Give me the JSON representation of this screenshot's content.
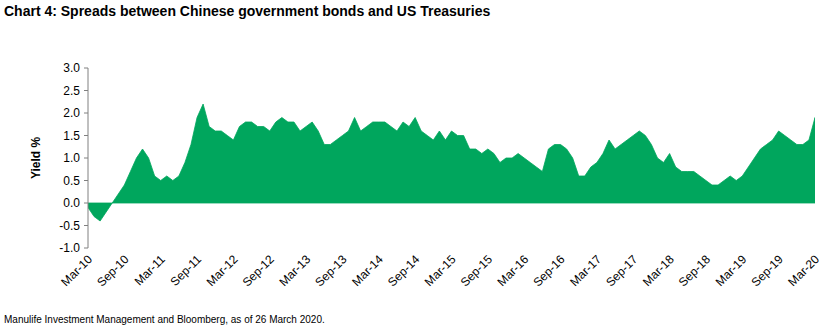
{
  "chart_data": {
    "type": "area",
    "title": "Chart 4: Spreads between Chinese government bonds and US Treasuries",
    "y_label": "Yield %",
    "source": "Manulife Investment Management and Bloomberg, as of 26 March 2020.",
    "color": "#00a65d",
    "grid": false,
    "categories": [
      "Mar-10",
      null,
      null,
      null,
      null,
      null,
      "Sep-10",
      null,
      null,
      null,
      null,
      null,
      "Mar-11",
      null,
      null,
      null,
      null,
      null,
      "Sep-11",
      null,
      null,
      null,
      null,
      null,
      "Mar-12",
      null,
      null,
      null,
      null,
      null,
      "Sep-12",
      null,
      null,
      null,
      null,
      null,
      "Mar-13",
      null,
      null,
      null,
      null,
      null,
      "Sep-13",
      null,
      null,
      null,
      null,
      null,
      "Mar-14",
      null,
      null,
      null,
      null,
      null,
      "Sep-14",
      null,
      null,
      null,
      null,
      null,
      "Mar-15",
      null,
      null,
      null,
      null,
      null,
      "Sep-15",
      null,
      null,
      null,
      null,
      null,
      "Mar-16",
      null,
      null,
      null,
      null,
      null,
      "Sep-16",
      null,
      null,
      null,
      null,
      null,
      "Mar-17",
      null,
      null,
      null,
      null,
      null,
      "Sep-17",
      null,
      null,
      null,
      null,
      null,
      "Mar-18",
      null,
      null,
      null,
      null,
      null,
      "Sep-18",
      null,
      null,
      null,
      null,
      null,
      "Mar-19",
      null,
      null,
      null,
      null,
      null,
      "Sep-19",
      null,
      null,
      null,
      null,
      null,
      "Mar-20"
    ],
    "values": [
      -0.1,
      -0.3,
      -0.4,
      -0.2,
      0.0,
      0.2,
      0.4,
      0.7,
      1.0,
      1.2,
      1.0,
      0.6,
      0.5,
      0.6,
      0.5,
      0.6,
      0.9,
      1.3,
      1.9,
      2.2,
      1.7,
      1.6,
      1.6,
      1.5,
      1.4,
      1.7,
      1.8,
      1.8,
      1.7,
      1.7,
      1.6,
      1.8,
      1.9,
      1.8,
      1.8,
      1.6,
      1.7,
      1.8,
      1.6,
      1.3,
      1.3,
      1.4,
      1.5,
      1.6,
      1.9,
      1.6,
      1.7,
      1.8,
      1.8,
      1.8,
      1.7,
      1.6,
      1.8,
      1.7,
      1.9,
      1.6,
      1.5,
      1.4,
      1.6,
      1.4,
      1.6,
      1.5,
      1.5,
      1.2,
      1.2,
      1.1,
      1.2,
      1.1,
      0.9,
      1.0,
      1.0,
      1.1,
      1.0,
      0.9,
      0.8,
      0.7,
      1.2,
      1.3,
      1.3,
      1.2,
      1.0,
      0.6,
      0.6,
      0.8,
      0.9,
      1.1,
      1.4,
      1.2,
      1.3,
      1.4,
      1.5,
      1.6,
      1.5,
      1.3,
      1.0,
      0.9,
      1.1,
      0.8,
      0.7,
      0.7,
      0.7,
      0.6,
      0.5,
      0.4,
      0.4,
      0.5,
      0.6,
      0.5,
      0.6,
      0.8,
      1.0,
      1.2,
      1.3,
      1.4,
      1.6,
      1.5,
      1.4,
      1.3,
      1.3,
      1.4,
      1.9
    ],
    "ylim": [
      -1.0,
      3.0
    ],
    "yticks": [
      {
        "value": -1.0,
        "label": "-1.0"
      },
      -0.5,
      {
        "value": 0.0,
        "label": "0.0"
      },
      0.5,
      {
        "value": 1.0,
        "label": "1.0"
      },
      1.5,
      {
        "value": 2.0,
        "label": "2.0"
      },
      2.5,
      {
        "value": 3.0,
        "label": "3.0"
      }
    ]
  }
}
